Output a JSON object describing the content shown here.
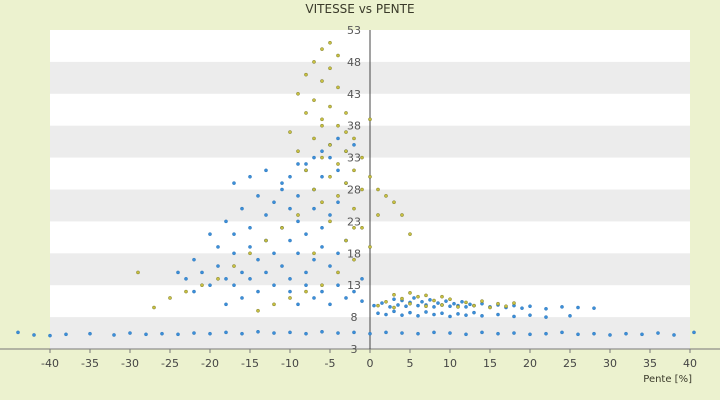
{
  "chart_data": {
    "type": "scatter",
    "title": "VITESSE vs PENTE",
    "xlabel": "Pente [%]",
    "ylabel": "",
    "xlim": [
      -40,
      40
    ],
    "ylim": [
      3,
      53
    ],
    "x_ticks": [
      -40,
      -35,
      -30,
      -25,
      -20,
      -15,
      -10,
      -5,
      0,
      5,
      10,
      15,
      20,
      25,
      30,
      35,
      40
    ],
    "y_ticks": [
      3,
      8,
      13,
      18,
      23,
      28,
      33,
      38,
      43,
      48,
      53
    ],
    "grid": "horizontal alternating bands",
    "legend": "none",
    "colors": {
      "blue": "#3b8fd9",
      "olive": "#c8c040",
      "background": "#ecf2cf",
      "plot": "#ffffff",
      "band": "#ececec"
    },
    "series": [
      {
        "color": "#3b8fd9",
        "points": [
          [
            -44,
            5.6
          ],
          [
            -42,
            5.2
          ],
          [
            -40,
            5.1
          ],
          [
            -38,
            5.3
          ],
          [
            -35,
            5.4
          ],
          [
            -32,
            5.2
          ],
          [
            -30,
            5.5
          ],
          [
            -28,
            5.3
          ],
          [
            -26,
            5.4
          ],
          [
            -24,
            5.3
          ],
          [
            -22,
            5.5
          ],
          [
            -20,
            5.4
          ],
          [
            -18,
            5.6
          ],
          [
            -16,
            5.4
          ],
          [
            -14,
            5.7
          ],
          [
            -12,
            5.5
          ],
          [
            -10,
            5.6
          ],
          [
            -8,
            5.4
          ],
          [
            -6,
            5.7
          ],
          [
            -4,
            5.5
          ],
          [
            -2,
            5.6
          ],
          [
            0,
            5.4
          ],
          [
            2,
            5.6
          ],
          [
            4,
            5.5
          ],
          [
            6,
            5.4
          ],
          [
            8,
            5.6
          ],
          [
            10,
            5.5
          ],
          [
            12,
            5.3
          ],
          [
            14,
            5.6
          ],
          [
            16,
            5.4
          ],
          [
            18,
            5.5
          ],
          [
            20,
            5.3
          ],
          [
            22,
            5.4
          ],
          [
            24,
            5.6
          ],
          [
            26,
            5.3
          ],
          [
            28,
            5.4
          ],
          [
            30,
            5.2
          ],
          [
            32,
            5.4
          ],
          [
            34,
            5.3
          ],
          [
            36,
            5.5
          ],
          [
            38,
            5.2
          ],
          [
            40.5,
            5.6
          ],
          [
            -1,
            10.5
          ],
          [
            0.5,
            9.8
          ],
          [
            1.5,
            10.2
          ],
          [
            2.5,
            9.6
          ],
          [
            3,
            10.8
          ],
          [
            3.5,
            9.9
          ],
          [
            4,
            10.6
          ],
          [
            4.5,
            9.7
          ],
          [
            5,
            10.3
          ],
          [
            5.5,
            11.0
          ],
          [
            6,
            9.8
          ],
          [
            6.5,
            10.4
          ],
          [
            7,
            9.9
          ],
          [
            7.5,
            10.7
          ],
          [
            8,
            9.6
          ],
          [
            8.5,
            10.2
          ],
          [
            9,
            9.9
          ],
          [
            9.5,
            10.5
          ],
          [
            10,
            9.7
          ],
          [
            10.5,
            10.1
          ],
          [
            11,
            9.8
          ],
          [
            11.5,
            10.4
          ],
          [
            12,
            9.6
          ],
          [
            12.5,
            10.0
          ],
          [
            13,
            9.8
          ],
          [
            14,
            10.1
          ],
          [
            15,
            9.6
          ],
          [
            16,
            9.9
          ],
          [
            17,
            9.5
          ],
          [
            18,
            9.8
          ],
          [
            19,
            9.4
          ],
          [
            20,
            9.7
          ],
          [
            22,
            9.3
          ],
          [
            24,
            9.6
          ],
          [
            26,
            9.5
          ],
          [
            28,
            9.4
          ],
          [
            1,
            8.6
          ],
          [
            2,
            8.4
          ],
          [
            3,
            8.9
          ],
          [
            4,
            8.3
          ],
          [
            5,
            8.7
          ],
          [
            6,
            8.2
          ],
          [
            7,
            8.8
          ],
          [
            8,
            8.4
          ],
          [
            9,
            8.6
          ],
          [
            10,
            8.1
          ],
          [
            11,
            8.5
          ],
          [
            12,
            8.3
          ],
          [
            13,
            8.7
          ],
          [
            14,
            8.2
          ],
          [
            16,
            8.4
          ],
          [
            18,
            8.1
          ],
          [
            20,
            8.3
          ],
          [
            22,
            8.0
          ],
          [
            25,
            8.2
          ],
          [
            -3,
            29
          ],
          [
            -4,
            31
          ],
          [
            -5,
            33
          ],
          [
            -6,
            30
          ],
          [
            -7,
            28
          ],
          [
            -8,
            32
          ],
          [
            -9,
            27
          ],
          [
            -10,
            25
          ],
          [
            -11,
            29
          ],
          [
            -12,
            26
          ],
          [
            -13,
            24
          ],
          [
            -14,
            27
          ],
          [
            -15,
            22
          ],
          [
            -16,
            25
          ],
          [
            -17,
            21
          ],
          [
            -18,
            23
          ],
          [
            -19,
            19
          ],
          [
            -20,
            21
          ],
          [
            -22,
            17
          ],
          [
            -24,
            15
          ],
          [
            -4,
            26
          ],
          [
            -5,
            24
          ],
          [
            -6,
            22
          ],
          [
            -7,
            25
          ],
          [
            -8,
            21
          ],
          [
            -9,
            23
          ],
          [
            -10,
            20
          ],
          [
            -11,
            22
          ],
          [
            -12,
            18
          ],
          [
            -13,
            20
          ],
          [
            -14,
            17
          ],
          [
            -15,
            19
          ],
          [
            -16,
            15
          ],
          [
            -17,
            18
          ],
          [
            -18,
            14
          ],
          [
            -19,
            16
          ],
          [
            -20,
            13
          ],
          [
            -21,
            15
          ],
          [
            -22,
            12
          ],
          [
            -23,
            14
          ],
          [
            -3,
            20
          ],
          [
            -4,
            18
          ],
          [
            -5,
            16
          ],
          [
            -6,
            19
          ],
          [
            -7,
            17
          ],
          [
            -8,
            15
          ],
          [
            -9,
            18
          ],
          [
            -10,
            14
          ],
          [
            -11,
            16
          ],
          [
            -12,
            13
          ],
          [
            -13,
            15
          ],
          [
            -14,
            12
          ],
          [
            -15,
            14
          ],
          [
            -16,
            11
          ],
          [
            -17,
            13
          ],
          [
            -18,
            10
          ],
          [
            -2,
            35
          ],
          [
            -3,
            34
          ],
          [
            -4,
            36
          ],
          [
            -5,
            35
          ],
          [
            -6,
            34
          ],
          [
            -7,
            33
          ],
          [
            -8,
            31
          ],
          [
            -9,
            32
          ],
          [
            -10,
            30
          ],
          [
            -11,
            28
          ],
          [
            -13,
            31
          ],
          [
            -15,
            30
          ],
          [
            -17,
            29
          ],
          [
            -1,
            14
          ],
          [
            -2,
            12
          ],
          [
            -3,
            11
          ],
          [
            -4,
            13
          ],
          [
            -5,
            10
          ],
          [
            -6,
            12
          ],
          [
            -7,
            11
          ],
          [
            -8,
            13
          ],
          [
            -9,
            10
          ],
          [
            -10,
            12
          ]
        ]
      },
      {
        "color": "#c8c040",
        "points": [
          [
            -5,
            51
          ],
          [
            -6,
            50
          ],
          [
            -4,
            49
          ],
          [
            -7,
            48
          ],
          [
            -5,
            47
          ],
          [
            -8,
            46
          ],
          [
            -6,
            45
          ],
          [
            -4,
            44
          ],
          [
            -9,
            43
          ],
          [
            -7,
            42
          ],
          [
            -5,
            41
          ],
          [
            -3,
            40
          ],
          [
            -8,
            40
          ],
          [
            -6,
            39
          ],
          [
            -4,
            38
          ],
          [
            -10,
            37
          ],
          [
            -2,
            36
          ],
          [
            -7,
            36
          ],
          [
            -5,
            35
          ],
          [
            -3,
            34
          ],
          [
            -9,
            34
          ],
          [
            -1,
            33
          ],
          [
            -6,
            33
          ],
          [
            -4,
            32
          ],
          [
            -2,
            31
          ],
          [
            -8,
            31
          ],
          [
            0,
            30
          ],
          [
            -5,
            30
          ],
          [
            -3,
            29
          ],
          [
            -7,
            28
          ],
          [
            1,
            28
          ],
          [
            -4,
            27
          ],
          [
            2,
            27
          ],
          [
            -6,
            26
          ],
          [
            3,
            26
          ],
          [
            -2,
            25
          ],
          [
            -9,
            24
          ],
          [
            4,
            24
          ],
          [
            -5,
            23
          ],
          [
            -1,
            22
          ],
          [
            -11,
            22
          ],
          [
            5,
            21
          ],
          [
            -3,
            20
          ],
          [
            -13,
            20
          ],
          [
            0,
            19
          ],
          [
            -7,
            18
          ],
          [
            -15,
            18
          ],
          [
            -2,
            17
          ],
          [
            -17,
            16
          ],
          [
            -4,
            15
          ],
          [
            -19,
            14
          ],
          [
            -6,
            13
          ],
          [
            -21,
            13
          ],
          [
            -8,
            12
          ],
          [
            -23,
            12
          ],
          [
            -10,
            11
          ],
          [
            -25,
            11
          ],
          [
            -12,
            10
          ],
          [
            -27,
            9.5
          ],
          [
            -14,
            9
          ],
          [
            -29,
            15
          ],
          [
            1,
            9.8
          ],
          [
            2,
            10.4
          ],
          [
            3,
            9.5
          ],
          [
            4,
            10.9
          ],
          [
            5,
            10.1
          ],
          [
            6,
            11.2
          ],
          [
            7,
            9.7
          ],
          [
            8,
            10.6
          ],
          [
            9,
            9.9
          ],
          [
            10,
            10.8
          ],
          [
            11,
            9.6
          ],
          [
            12,
            10.3
          ],
          [
            13,
            9.8
          ],
          [
            14,
            10.5
          ],
          [
            15,
            9.5
          ],
          [
            16,
            10.1
          ],
          [
            17,
            9.7
          ],
          [
            18,
            10.2
          ],
          [
            3,
            11.5
          ],
          [
            5,
            11.8
          ],
          [
            7,
            11.4
          ],
          [
            9,
            11.2
          ],
          [
            -6,
            38
          ],
          [
            -3,
            37
          ],
          [
            0,
            39
          ],
          [
            -1,
            28
          ],
          [
            1,
            24
          ],
          [
            -2,
            22
          ]
        ]
      }
    ]
  }
}
